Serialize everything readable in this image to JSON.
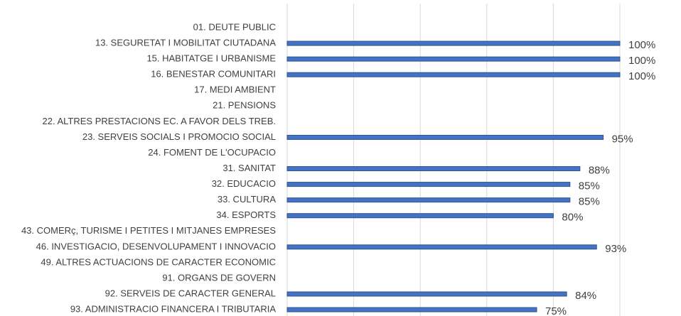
{
  "chart_data": {
    "type": "bar",
    "orientation": "horizontal",
    "categories": [
      "01. DEUTE PUBLIC",
      "13. SEGURETAT I MOBILITAT CIUTADANA",
      "15. HABITATGE I URBANISME",
      "16. BENESTAR COMUNITARI",
      "17. MEDI AMBIENT",
      "21. PENSIONS",
      "22. ALTRES PRESTACIONS EC. A FAVOR DELS TREB.",
      "23. SERVEIS SOCIALS I PROMOCIO SOCIAL",
      "24. FOMENT DE L'OCUPACIO",
      "31. SANITAT",
      "32. EDUCACIO",
      "33. CULTURA",
      "34. ESPORTS",
      "43. COMERç, TURISME I PETITES I MITJANES EMPRESES",
      "46. INVESTIGACIO, DESENVOLUPAMENT I INNOVACIO",
      "49. ALTRES ACTUACIONS DE CARACTER ECONOMIC",
      "91. ORGANS DE GOVERN",
      "92. SERVEIS DE CARACTER GENERAL",
      "93. ADMINISTRACIO FINANCERA I TRIBUTARIA"
    ],
    "values": [
      null,
      100,
      100,
      100,
      null,
      null,
      null,
      95,
      null,
      88,
      85,
      85,
      80,
      null,
      93,
      null,
      null,
      84,
      75
    ],
    "value_labels": [
      null,
      "100%",
      "100%",
      "100%",
      null,
      null,
      null,
      "95%",
      null,
      "88%",
      "85%",
      "85%",
      "80%",
      null,
      "93%",
      null,
      null,
      "84%",
      "75%"
    ],
    "color": "#4472c4",
    "xlim": [
      0,
      100
    ],
    "xticks": [
      0,
      20,
      40,
      60,
      80,
      100
    ],
    "grid": true
  }
}
